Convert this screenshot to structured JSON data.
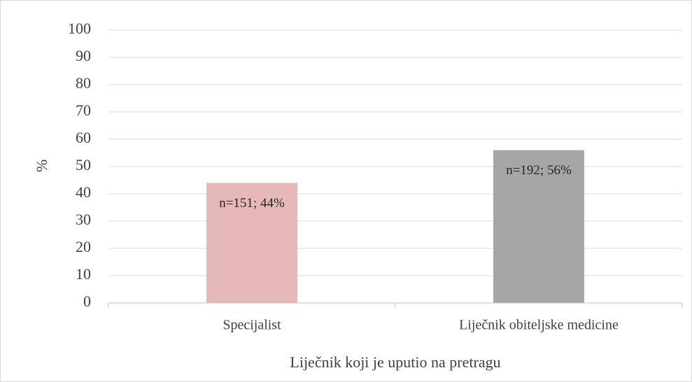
{
  "chart_data": {
    "type": "bar",
    "categories": [
      "Specijalist",
      "Liječnik obiteljske medicine"
    ],
    "values": [
      44,
      56
    ],
    "value_labels": [
      "n=151; 44%",
      "n=192; 56%"
    ],
    "colors": [
      "#e6b8b7",
      "#a6a6a6"
    ],
    "ylabel": "%",
    "xlabel": "Liječnik koji je uputio na pretragu",
    "ylim": [
      0,
      100
    ],
    "yticks": [
      0,
      10,
      20,
      30,
      40,
      50,
      60,
      70,
      80,
      90,
      100
    ],
    "grid": true
  }
}
